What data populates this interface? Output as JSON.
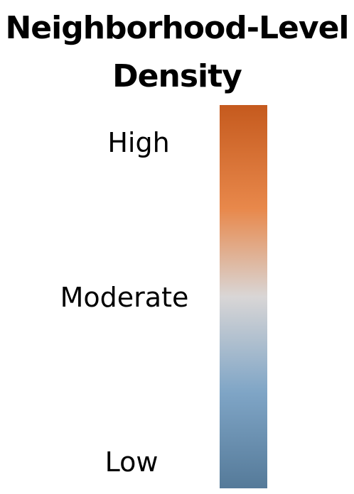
{
  "title": {
    "line1": "Neighborhood-Level",
    "line2": "Density"
  },
  "legend": {
    "labels": {
      "high": "High",
      "moderate": "Moderate",
      "low": "Low"
    },
    "colors": {
      "high_top": "#c55a1e",
      "high": "#e8884b",
      "moderate": "#d9d6d6",
      "low_mid": "#7fa5c6",
      "low_bottom": "#557a99"
    }
  }
}
